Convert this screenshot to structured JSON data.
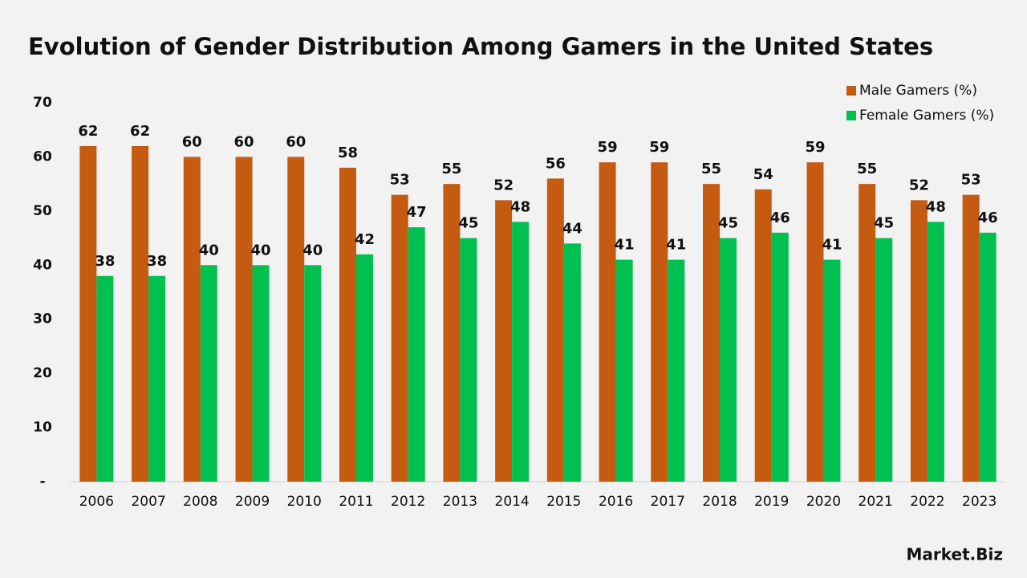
{
  "chart_data": {
    "type": "bar",
    "title": "Evolution of Gender Distribution Among Gamers in the United States",
    "categories": [
      "2006",
      "2007",
      "2008",
      "2009",
      "2010",
      "2011",
      "2012",
      "2013",
      "2014",
      "2015",
      "2016",
      "2017",
      "2018",
      "2019",
      "2020",
      "2021",
      "2022",
      "2023"
    ],
    "series": [
      {
        "name": "Male Gamers (%)",
        "color": "#c55a11",
        "values": [
          62,
          62,
          60,
          60,
          60,
          58,
          53,
          55,
          52,
          56,
          59,
          59,
          55,
          54,
          59,
          55,
          52,
          53
        ]
      },
      {
        "name": "Female Gamers (%)",
        "color": "#00c050",
        "values": [
          38,
          38,
          40,
          40,
          40,
          42,
          47,
          45,
          48,
          44,
          41,
          41,
          45,
          46,
          41,
          45,
          48,
          46
        ]
      }
    ],
    "ylim": [
      0,
      70
    ],
    "yticks": [
      {
        "value": 0,
        "label": "-"
      },
      10,
      20,
      30,
      40,
      50,
      60,
      70
    ],
    "grid": false,
    "legend": "top-right"
  },
  "logo_text": "Market.Biz"
}
